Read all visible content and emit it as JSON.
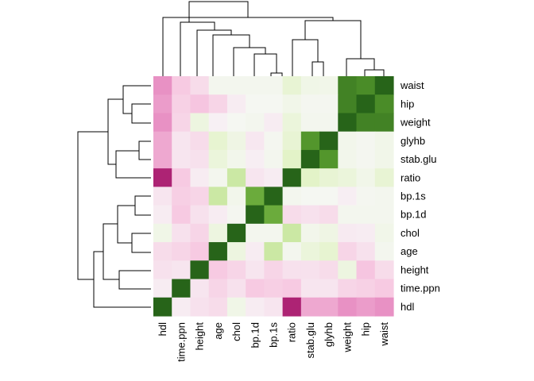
{
  "chart_data": {
    "type": "heatmap",
    "title": "",
    "xlabel": "",
    "ylabel": "",
    "legend": "none",
    "grid": false,
    "clustered": true,
    "column_labels": [
      "hdl",
      "time.ppn",
      "height",
      "age",
      "chol",
      "bp.1d",
      "bp.1s",
      "ratio",
      "stab.glu",
      "glyhb",
      "weight",
      "hip",
      "waist"
    ],
    "row_labels": [
      "waist",
      "hip",
      "weight",
      "glyhb",
      "stab.glu",
      "ratio",
      "bp.1s",
      "bp.1d",
      "chol",
      "age",
      "height",
      "time.ppn",
      "hdl"
    ],
    "value_range": [
      -1,
      1
    ],
    "colors": {
      "low": "#8e0152",
      "mid": "#f7f7f7",
      "high": "#276419",
      "palette": "PiYG"
    },
    "values": [
      [
        -0.45,
        -0.2,
        -0.12,
        0.04,
        0.04,
        0.04,
        0.04,
        0.15,
        0.07,
        0.06,
        0.85,
        0.8,
        1.0
      ],
      [
        -0.4,
        -0.17,
        -0.22,
        -0.15,
        -0.05,
        0.02,
        0.02,
        0.06,
        0.03,
        0.03,
        0.85,
        1.0,
        0.8
      ],
      [
        -0.45,
        -0.15,
        0.1,
        -0.03,
        0.02,
        0.04,
        -0.05,
        0.12,
        0.04,
        0.04,
        1.0,
        0.85,
        0.85
      ],
      [
        -0.35,
        -0.08,
        -0.12,
        0.16,
        0.08,
        -0.07,
        0.03,
        0.15,
        0.75,
        1.0,
        0.05,
        0.03,
        0.06
      ],
      [
        -0.35,
        -0.08,
        -0.1,
        0.12,
        0.05,
        -0.04,
        0.04,
        0.2,
        1.0,
        0.75,
        0.05,
        0.03,
        0.06
      ],
      [
        -0.85,
        -0.2,
        -0.05,
        0.04,
        0.3,
        -0.08,
        -0.05,
        1.0,
        0.2,
        0.15,
        0.12,
        0.06,
        0.15
      ],
      [
        -0.08,
        -0.18,
        -0.15,
        0.3,
        0.05,
        0.65,
        1.0,
        0.04,
        0.02,
        0.02,
        -0.04,
        0.03,
        0.04
      ],
      [
        -0.05,
        -0.2,
        -0.1,
        -0.05,
        0.03,
        1.0,
        0.65,
        -0.12,
        -0.1,
        -0.12,
        0.04,
        0.04,
        0.04
      ],
      [
        0.07,
        -0.1,
        -0.15,
        0.1,
        1.0,
        0.04,
        0.04,
        0.3,
        0.05,
        0.08,
        -0.06,
        -0.05,
        0.06
      ],
      [
        -0.12,
        -0.15,
        -0.2,
        1.0,
        0.1,
        -0.05,
        0.3,
        0.04,
        0.12,
        0.16,
        -0.15,
        -0.1,
        0.04
      ],
      [
        -0.1,
        -0.08,
        1.0,
        -0.2,
        -0.15,
        -0.08,
        -0.15,
        -0.1,
        -0.1,
        -0.12,
        0.1,
        -0.22,
        -0.12
      ],
      [
        -0.05,
        1.0,
        -0.08,
        -0.15,
        -0.1,
        -0.2,
        -0.18,
        -0.2,
        -0.08,
        -0.08,
        -0.15,
        -0.17,
        -0.2
      ],
      [
        1.0,
        -0.05,
        -0.1,
        -0.12,
        0.07,
        -0.05,
        -0.08,
        -0.85,
        -0.35,
        -0.35,
        -0.45,
        -0.4,
        -0.45
      ]
    ]
  }
}
